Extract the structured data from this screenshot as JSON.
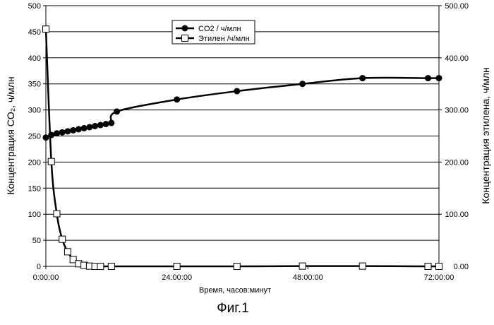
{
  "chart_data": {
    "type": "line",
    "x_tick_labels": [
      "0:00:00",
      "24:00:00",
      "48:00:00",
      "72:00:00"
    ],
    "x_range_hours": [
      0,
      72
    ],
    "xlabel": "Время, часов:минут",
    "y_left": {
      "label": "Концентрация CO₂, ч/млн",
      "range": [
        0,
        500
      ],
      "tick_labels": [
        "0",
        "50",
        "100",
        "150",
        "200",
        "250",
        "300",
        "350",
        "400",
        "450",
        "500"
      ]
    },
    "y_right": {
      "label": "Концентрация этилена, ч/млн",
      "range": [
        0,
        500
      ],
      "tick_labels": [
        "0.00",
        "100.00",
        "200.00",
        "300.00",
        "400.00",
        "500.00"
      ]
    },
    "grid": "horizontal",
    "legend_position": "top-center",
    "series": [
      {
        "name": "CO2 /  ч/млн",
        "marker": "filled-circle",
        "axis": "left",
        "x_hours": [
          0,
          1,
          2,
          3,
          4,
          5,
          6,
          7,
          8,
          9,
          10,
          11,
          12,
          13,
          24,
          35,
          47,
          58,
          70,
          72
        ],
        "values": [
          247,
          252,
          255,
          257,
          259,
          261,
          263,
          265,
          267,
          269,
          271,
          273,
          275,
          297,
          320,
          336,
          350,
          361,
          361,
          361
        ]
      },
      {
        "name": "Этилен /ч/млн",
        "marker": "open-square",
        "axis": "right",
        "x_hours": [
          0,
          1,
          2,
          3,
          4,
          5,
          6,
          7,
          8,
          9,
          10,
          12,
          24,
          35,
          47,
          58,
          70,
          72
        ],
        "values": [
          455,
          201,
          101,
          52,
          28,
          13,
          5,
          2,
          0.5,
          0,
          0,
          0,
          0,
          0,
          0.5,
          0.5,
          0,
          0
        ]
      }
    ]
  },
  "figure_caption": "Фиг.1"
}
